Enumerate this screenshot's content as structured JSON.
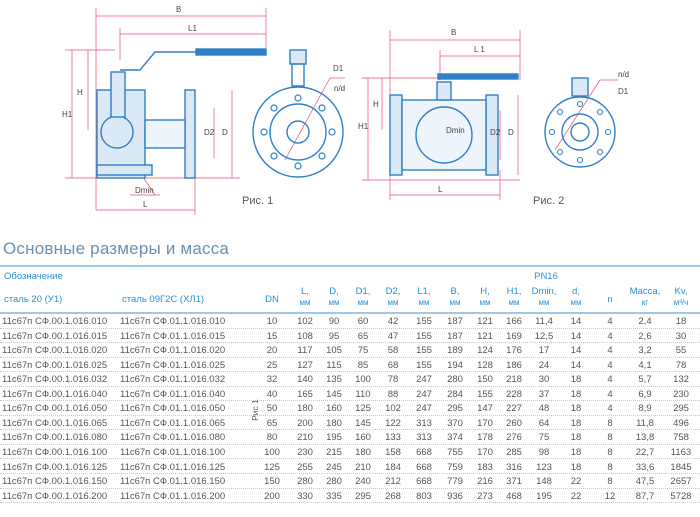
{
  "figure1": {
    "labels": {
      "B": "B",
      "L1": "L1",
      "H": "H",
      "H1": "H1",
      "D2": "D2",
      "D": "D",
      "Dmin": "Dmin",
      "L": "L",
      "D1": "D1",
      "nd": "n/d"
    },
    "caption": "Рис. 1"
  },
  "figure2": {
    "labels": {
      "B": "B",
      "L1": "L 1",
      "H": "H",
      "H1": "H1",
      "Dmin": "Dmin",
      "D2": "D2",
      "D": "D",
      "L": "L",
      "nd": "n/d",
      "D1": "D1"
    },
    "caption": "Рис. 2"
  },
  "colors": {
    "drawing": "#2f7fc8",
    "dimension": "#e8506a",
    "header": "#2a8fd4",
    "rule": "#9cc8ea"
  },
  "section_title": "Основные размеры и масса",
  "table": {
    "group_header": "Обозначение",
    "pressure": "PN16",
    "col1_header": "сталь 20 (У1)",
    "col2_header": "сталь 09Г2С (ХЛ1)",
    "figure_ref": "Рис 1",
    "columns": [
      {
        "n": "DN",
        "u": ""
      },
      {
        "n": "L,",
        "u": "мм"
      },
      {
        "n": "D,",
        "u": "мм"
      },
      {
        "n": "D1,",
        "u": "мм"
      },
      {
        "n": "D2,",
        "u": "мм"
      },
      {
        "n": "L1,",
        "u": "мм"
      },
      {
        "n": "B,",
        "u": "мм"
      },
      {
        "n": "H,",
        "u": "мм"
      },
      {
        "n": "H1,",
        "u": "мм"
      },
      {
        "n": "Dmin,",
        "u": "мм"
      },
      {
        "n": "d,",
        "u": "мм"
      },
      {
        "n": "n",
        "u": ""
      },
      {
        "n": "Масса,",
        "u": "кг"
      },
      {
        "n": "Kv,",
        "u": "м³/ч"
      }
    ],
    "rows": [
      {
        "a": "11с67п СФ.00.1.016.010",
        "b": "11с67п СФ.01.1.016.010",
        "v": [
          "10",
          "102",
          "90",
          "60",
          "42",
          "155",
          "187",
          "121",
          "166",
          "11,4",
          "14",
          "4",
          "2,4",
          "18"
        ]
      },
      {
        "a": "11с67п СФ.00.1.016.015",
        "b": "11с67п СФ.01.1.016.015",
        "v": [
          "15",
          "108",
          "95",
          "65",
          "47",
          "155",
          "187",
          "121",
          "169",
          "12,5",
          "14",
          "4",
          "2,6",
          "30"
        ]
      },
      {
        "a": "11с67п СФ.00.1.016.020",
        "b": "11с67п СФ.01.1.016.020",
        "v": [
          "20",
          "117",
          "105",
          "75",
          "58",
          "155",
          "189",
          "124",
          "176",
          "17",
          "14",
          "4",
          "3,2",
          "55"
        ]
      },
      {
        "a": "11с67п СФ.00.1.016.025",
        "b": "11с67п СФ.01.1.016.025",
        "v": [
          "25",
          "127",
          "115",
          "85",
          "68",
          "155",
          "194",
          "128",
          "186",
          "24",
          "14",
          "4",
          "4,1",
          "78"
        ]
      },
      {
        "a": "11с67п СФ.00.1.016.032",
        "b": "11с67п СФ.01.1.016.032",
        "v": [
          "32",
          "140",
          "135",
          "100",
          "78",
          "247",
          "280",
          "150",
          "218",
          "30",
          "18",
          "4",
          "5,7",
          "132"
        ]
      },
      {
        "a": "11с67п СФ.00.1.016.040",
        "b": "11с67п СФ.01.1.016.040",
        "v": [
          "40",
          "165",
          "145",
          "110",
          "88",
          "247",
          "284",
          "155",
          "228",
          "37",
          "18",
          "4",
          "6,9",
          "230"
        ]
      },
      {
        "a": "11с67п СФ.00.1.016.050",
        "b": "11с67п СФ.01.1.016.050",
        "v": [
          "50",
          "180",
          "160",
          "125",
          "102",
          "247",
          "295",
          "147",
          "227",
          "48",
          "18",
          "4",
          "8,9",
          "295"
        ]
      },
      {
        "a": "11с67п СФ.00.1.016.065",
        "b": "11с67п СФ.01.1.016.065",
        "v": [
          "65",
          "200",
          "180",
          "145",
          "122",
          "313",
          "370",
          "170",
          "260",
          "64",
          "18",
          "8",
          "11,8",
          "496"
        ]
      },
      {
        "a": "11с67п СФ.00.1.016.080",
        "b": "11с67п СФ.01.1.016.080",
        "v": [
          "80",
          "210",
          "195",
          "160",
          "133",
          "313",
          "374",
          "178",
          "276",
          "75",
          "18",
          "8",
          "13,8",
          "758"
        ]
      },
      {
        "a": "11с67п СФ.00.1.016.100",
        "b": "11с67п СФ.01.1.016.100",
        "v": [
          "100",
          "230",
          "215",
          "180",
          "158",
          "668",
          "755",
          "170",
          "285",
          "98",
          "18",
          "8",
          "22,7",
          "1163"
        ]
      },
      {
        "a": "11с67п СФ.00.1.016.125",
        "b": "11с67п СФ.01.1.016.125",
        "v": [
          "125",
          "255",
          "245",
          "210",
          "184",
          "668",
          "759",
          "183",
          "316",
          "123",
          "18",
          "8",
          "33,6",
          "1845"
        ]
      },
      {
        "a": "11с67п СФ.00.1.016.150",
        "b": "11с67п СФ.01.1.016.150",
        "v": [
          "150",
          "280",
          "280",
          "240",
          "212",
          "668",
          "779",
          "216",
          "371",
          "148",
          "22",
          "8",
          "47,5",
          "2657"
        ]
      },
      {
        "a": "11с67п СФ.00.1.016.200",
        "b": "11с67п СФ.01.1.016.200",
        "v": [
          "200",
          "330",
          "335",
          "295",
          "268",
          "803",
          "936",
          "273",
          "468",
          "195",
          "22",
          "12",
          "87,7",
          "5728"
        ]
      }
    ]
  }
}
